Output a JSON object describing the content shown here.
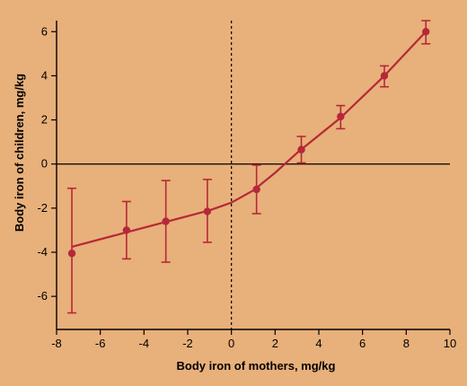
{
  "chart_data": {
    "type": "line",
    "title": "",
    "xlabel": "Body iron of mothers, mg/kg",
    "ylabel": "Body iron of children, mg/kg",
    "xlim": [
      -8,
      10
    ],
    "ylim": [
      -8,
      6.5
    ],
    "x_ticks": [
      -8,
      -6,
      -4,
      -2,
      0,
      2,
      4,
      6,
      8,
      10
    ],
    "x_tick_labels": [
      "-8",
      "-6",
      "-4",
      "-2",
      "0",
      "2",
      "4",
      "6",
      "8",
      "10"
    ],
    "y_ticks": [
      -6,
      -4,
      -2,
      0,
      2,
      4,
      6
    ],
    "y_tick_labels": [
      "-6",
      "-4",
      "-2",
      "0",
      "2",
      "4",
      "6"
    ],
    "reference_lines": {
      "horizontal_y": 0,
      "vertical_dashed_x": 0
    },
    "grid": false,
    "series": [
      {
        "color": "#B52838",
        "points": [
          {
            "x": -7.3,
            "y": -4.05,
            "err_low": -6.75,
            "err_high": -1.1
          },
          {
            "x": -4.8,
            "y": -3.0,
            "err_low": -4.3,
            "err_high": -1.7
          },
          {
            "x": -3.0,
            "y": -2.6,
            "err_low": -4.45,
            "err_high": -0.75
          },
          {
            "x": -1.1,
            "y": -2.15,
            "err_low": -3.55,
            "err_high": -0.7
          },
          {
            "x": 1.15,
            "y": -1.15,
            "err_low": -2.25,
            "err_high": -0.05
          },
          {
            "x": 3.2,
            "y": 0.65,
            "err_low": 0.05,
            "err_high": 1.25
          },
          {
            "x": 5.0,
            "y": 2.15,
            "err_low": 1.6,
            "err_high": 2.65
          },
          {
            "x": 7.0,
            "y": 4.0,
            "err_low": 3.5,
            "err_high": 4.45
          },
          {
            "x": 8.9,
            "y": 6.0,
            "err_low": 5.45,
            "err_high": 6.5
          }
        ],
        "fit_line": [
          {
            "x": -7.3,
            "y": -3.75
          },
          {
            "x": -1.0,
            "y": -2.1
          },
          {
            "x": 0.0,
            "y": -1.75
          },
          {
            "x": 1.0,
            "y": -1.2
          },
          {
            "x": 2.0,
            "y": -0.4
          },
          {
            "x": 3.0,
            "y": 0.5
          },
          {
            "x": 5.0,
            "y": 2.1
          },
          {
            "x": 7.0,
            "y": 4.0
          },
          {
            "x": 8.9,
            "y": 6.0
          }
        ]
      }
    ]
  }
}
